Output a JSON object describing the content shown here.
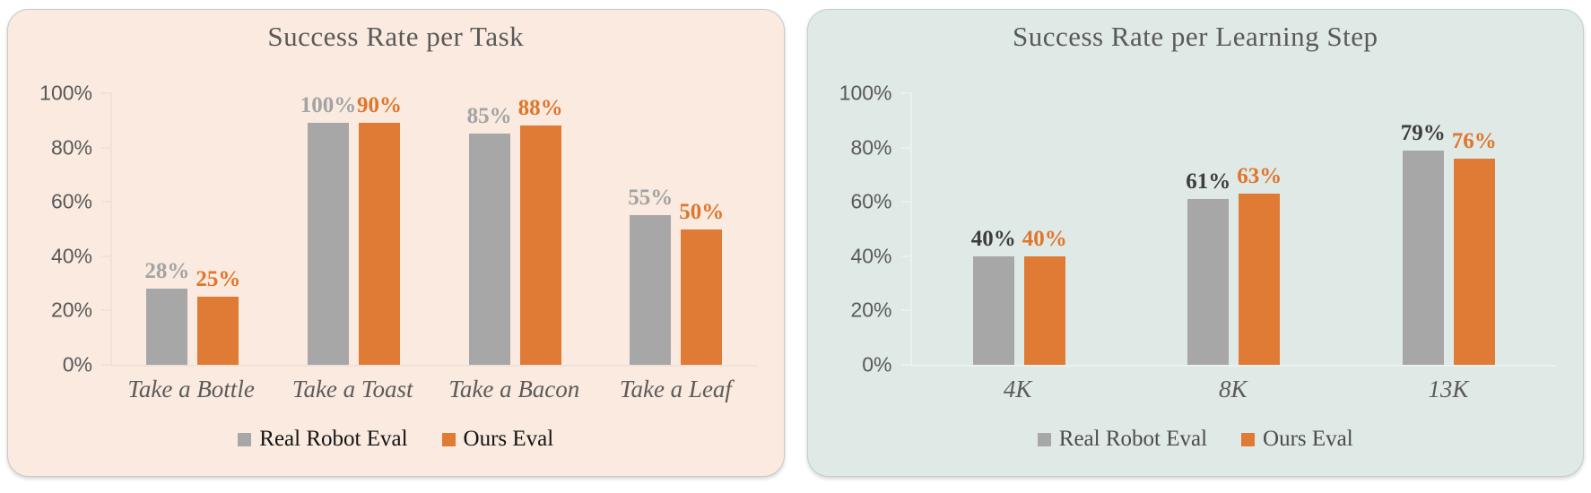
{
  "page": {
    "background": "#ffffff"
  },
  "chart_data": [
    {
      "type": "bar",
      "title": "Success Rate per Task",
      "categories": [
        "Take a Bottle",
        "Take a Toast",
        "Take a Bacon",
        "Take a Leaf"
      ],
      "series": [
        {
          "name": "Real Robot Eval",
          "values": [
            28,
            100,
            85,
            55
          ],
          "labels": [
            "28%",
            "100%",
            "85%",
            "55%"
          ],
          "bar_color": "#a7a7a7",
          "label_color": "#a3a3a3"
        },
        {
          "name": "Ours Eval",
          "values": [
            25,
            90,
            88,
            50
          ],
          "labels": [
            "25%",
            "90%",
            "88%",
            "50%"
          ],
          "bar_color": "#df7b35",
          "label_color": "#e1752b"
        }
      ],
      "ylim": [
        0,
        100
      ],
      "y_ticks": [
        "0%",
        "20%",
        "40%",
        "60%",
        "80%",
        "100%"
      ],
      "grid": false,
      "legend_position": "bottom",
      "colors": {
        "card_bg": "#faeadf",
        "card_border": "#c9c9c9",
        "axis": "#eee3da",
        "title": "#595959",
        "tick_text": "#595959",
        "category_text": "#5b5b5b",
        "legend_text": "#141414"
      }
    },
    {
      "type": "bar",
      "title": "Success Rate per Learning Step",
      "categories": [
        "4K",
        "8K",
        "13K"
      ],
      "series": [
        {
          "name": "Real Robot Eval",
          "values": [
            40,
            61,
            79
          ],
          "labels": [
            "40%",
            "61%",
            "79%"
          ],
          "bar_color": "#a7a7a7",
          "label_color": "#3d3d3d"
        },
        {
          "name": "Ours Eval",
          "values": [
            40,
            63,
            76
          ],
          "labels": [
            "40%",
            "63%",
            "76%"
          ],
          "bar_color": "#df7b35",
          "label_color": "#e1752b"
        }
      ],
      "ylim": [
        0,
        100
      ],
      "y_ticks": [
        "0%",
        "20%",
        "40%",
        "60%",
        "80%",
        "100%"
      ],
      "grid": false,
      "legend_position": "bottom",
      "colors": {
        "card_bg": "#dfe9e6",
        "card_border": "#c6cecb",
        "axis": "#eaf1ee",
        "title": "#595959",
        "tick_text": "#595959",
        "category_text": "#5b5b5b",
        "legend_text": "#4c4c4c"
      }
    }
  ]
}
